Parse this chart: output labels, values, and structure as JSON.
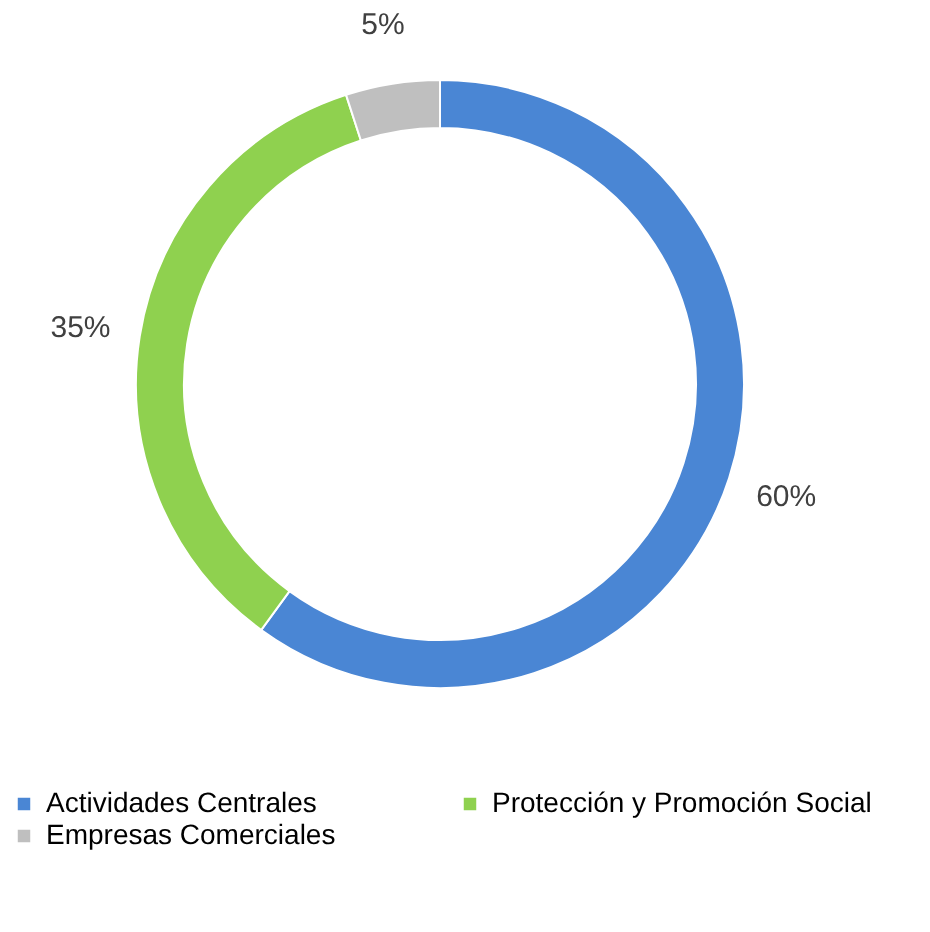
{
  "chart_data": {
    "type": "donut",
    "categories": [
      "Actividades Centrales",
      "Protección y Promoción Social",
      "Empresas Comerciales"
    ],
    "values": [
      60,
      35,
      5
    ],
    "colors": [
      "#4a86d4",
      "#8fd14f",
      "#bfbfbf"
    ],
    "value_labels": [
      "60%",
      "35%",
      "5%"
    ],
    "legend": "bottom"
  }
}
